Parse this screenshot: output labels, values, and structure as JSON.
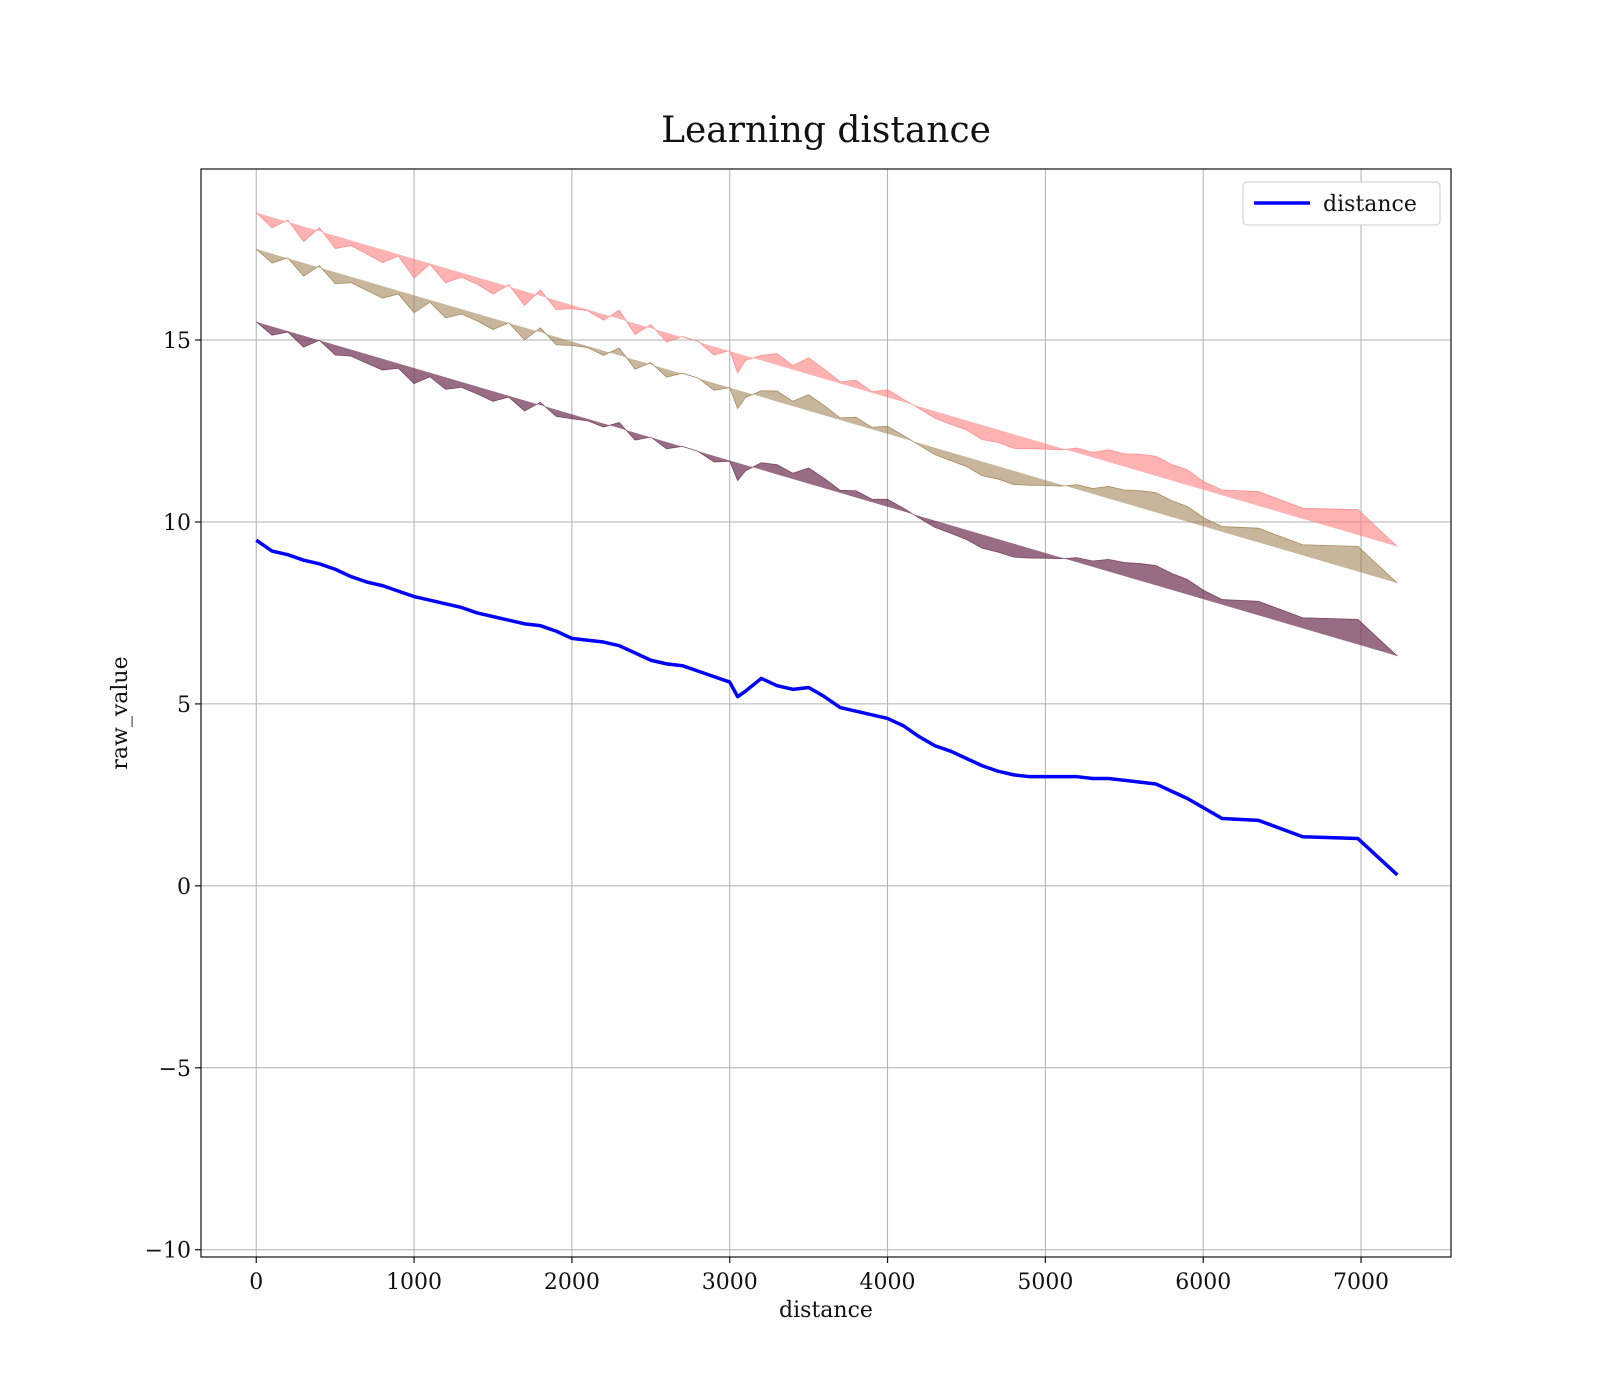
{
  "chart_data": {
    "type": "line",
    "title": "Learning distance",
    "xlabel": "distance",
    "ylabel": "raw_value",
    "xlim": [
      -350,
      7570
    ],
    "ylim": [
      -10.2,
      19.7
    ],
    "x_ticks": [
      0,
      1000,
      2000,
      3000,
      4000,
      5000,
      6000,
      7000
    ],
    "x_tick_labels": [
      "0",
      "1000",
      "2000",
      "3000",
      "4000",
      "5000",
      "6000",
      "7000"
    ],
    "y_ticks": [
      -10,
      -5,
      0,
      5,
      10,
      15
    ],
    "y_tick_labels": [
      "−10",
      "−5",
      "0",
      "5",
      "10",
      "15"
    ],
    "grid": true,
    "legend_position": "top-right",
    "legend": [
      "distance"
    ],
    "colors": {
      "line": "#0000ff",
      "outer_band": "#ff7f7f",
      "middle_band": "#9a7a4a",
      "inner_band": "#6b2e50",
      "grid": "#b0b0b0"
    },
    "series": [
      {
        "name": "distance",
        "x": [
          0,
          100,
          200,
          300,
          400,
          500,
          600,
          700,
          800,
          900,
          1000,
          1100,
          1200,
          1300,
          1400,
          1500,
          1600,
          1700,
          1800,
          1900,
          2000,
          2100,
          2200,
          2300,
          2400,
          2500,
          2600,
          2700,
          2800,
          2900,
          3000,
          3050,
          3100,
          3200,
          3300,
          3400,
          3500,
          3600,
          3700,
          3800,
          3900,
          4000,
          4100,
          4200,
          4300,
          4400,
          4500,
          4600,
          4700,
          4800,
          4900,
          5000,
          5100,
          5200,
          5300,
          5400,
          5500,
          5600,
          5700,
          5800,
          5900,
          6000,
          6120,
          6350,
          6630,
          6980,
          7230
        ],
        "values": [
          9.5,
          9.2,
          9.1,
          8.95,
          8.85,
          8.7,
          8.5,
          8.35,
          8.25,
          8.1,
          7.95,
          7.85,
          7.75,
          7.65,
          7.5,
          7.4,
          7.3,
          7.2,
          7.15,
          7.0,
          6.8,
          6.75,
          6.7,
          6.6,
          6.4,
          6.2,
          6.1,
          6.05,
          5.9,
          5.75,
          5.6,
          5.2,
          5.35,
          5.7,
          5.5,
          5.4,
          5.45,
          5.2,
          4.9,
          4.8,
          4.7,
          4.6,
          4.4,
          4.1,
          3.85,
          3.7,
          3.5,
          3.3,
          3.15,
          3.05,
          3.0,
          3.0,
          3.0,
          3.0,
          2.95,
          2.95,
          2.9,
          2.85,
          2.8,
          2.6,
          2.4,
          2.15,
          1.85,
          1.8,
          1.35,
          1.3,
          0.3
        ]
      }
    ],
    "bands": [
      {
        "name": "inner",
        "half_width": 6.0
      },
      {
        "name": "middle",
        "half_width": 8.0
      },
      {
        "name": "outer",
        "half_width": 9.0
      }
    ]
  }
}
